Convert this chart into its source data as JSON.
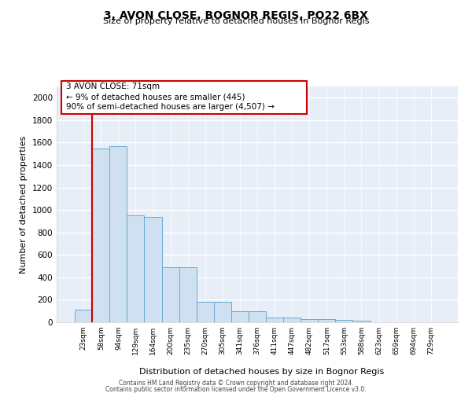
{
  "title1": "3, AVON CLOSE, BOGNOR REGIS, PO22 6BX",
  "title2": "Size of property relative to detached houses in Bognor Regis",
  "xlabel": "Distribution of detached houses by size in Bognor Regis",
  "ylabel": "Number of detached properties",
  "categories": [
    "23sqm",
    "58sqm",
    "94sqm",
    "129sqm",
    "164sqm",
    "200sqm",
    "235sqm",
    "270sqm",
    "305sqm",
    "341sqm",
    "376sqm",
    "411sqm",
    "447sqm",
    "482sqm",
    "517sqm",
    "553sqm",
    "588sqm",
    "623sqm",
    "659sqm",
    "694sqm",
    "729sqm"
  ],
  "values": [
    110,
    1545,
    1570,
    950,
    940,
    490,
    490,
    185,
    185,
    100,
    100,
    40,
    40,
    25,
    25,
    20,
    15,
    0,
    0,
    0,
    0
  ],
  "bar_color": "#cfe0f0",
  "bar_edge_color": "#6aaad4",
  "red_line_index": 1,
  "annotation_text": "3 AVON CLOSE: 71sqm\n← 9% of detached houses are smaller (445)\n90% of semi-detached houses are larger (4,507) →",
  "annotation_box_color": "#ffffff",
  "annotation_box_edge": "#cc0000",
  "red_line_color": "#cc0000",
  "bg_color": "#e8eef8",
  "grid_color": "#ffffff",
  "fig_bg": "#ffffff",
  "ylim": [
    0,
    2100
  ],
  "yticks": [
    0,
    200,
    400,
    600,
    800,
    1000,
    1200,
    1400,
    1600,
    1800,
    2000
  ],
  "footer1": "Contains HM Land Registry data © Crown copyright and database right 2024.",
  "footer2": "Contains public sector information licensed under the Open Government Licence v3.0."
}
